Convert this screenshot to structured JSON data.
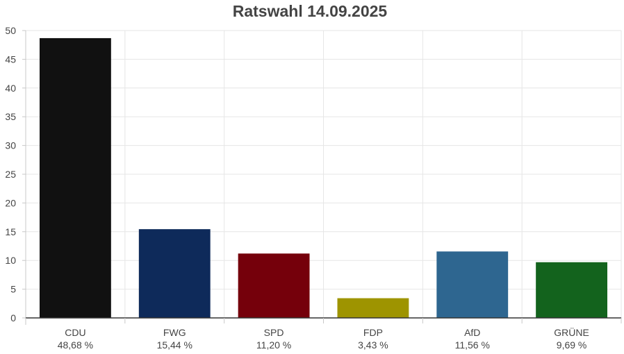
{
  "chart_data": {
    "type": "bar",
    "title": "Ratswahl 14.09.2025",
    "categories": [
      "CDU",
      "FWG",
      "SPD",
      "FDP",
      "AfD",
      "GRÜNE"
    ],
    "values": [
      48.68,
      15.44,
      11.2,
      3.43,
      11.56,
      9.69
    ],
    "value_labels": [
      "48,68 %",
      "15,44 %",
      "11,20 %",
      "3,43 %",
      "11,56 %",
      "9,69 %"
    ],
    "colors": [
      "#111111",
      "#0e2a5a",
      "#75000b",
      "#9e9400",
      "#2e6690",
      "#13631d"
    ],
    "ylim": [
      0,
      50
    ],
    "yticks": [
      0,
      5,
      10,
      15,
      20,
      25,
      30,
      35,
      40,
      45,
      50
    ],
    "grid": true,
    "xlabel": "",
    "ylabel": ""
  }
}
